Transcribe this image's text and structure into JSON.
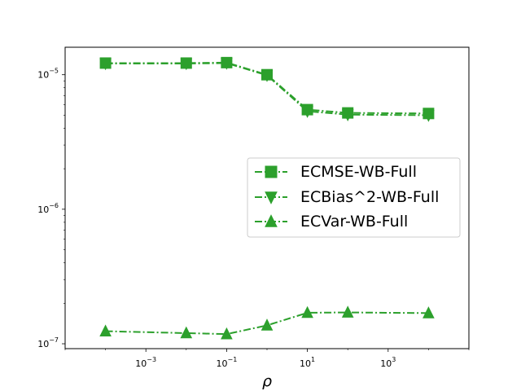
{
  "chart_data": {
    "type": "line",
    "title": "",
    "xlabel": "ρ",
    "ylabel": "",
    "xscale": "log",
    "yscale": "log",
    "xlim": [
      1e-05,
      100000
    ],
    "ylim": [
      9.2e-08,
      1.6e-05
    ],
    "grid": false,
    "legend_position": "center-right",
    "x": [
      0.0001,
      0.01,
      0.1,
      1,
      10,
      100,
      10000
    ],
    "x_ticks": [
      {
        "value": 0.001,
        "base": "10",
        "exp": "−3"
      },
      {
        "value": 0.1,
        "base": "10",
        "exp": "−1"
      },
      {
        "value": 10,
        "base": "10",
        "exp": "1"
      },
      {
        "value": 1000,
        "base": "10",
        "exp": "3"
      }
    ],
    "y_ticks": [
      {
        "value": 1e-07,
        "base": "10",
        "exp": "−7"
      },
      {
        "value": 1e-06,
        "base": "10",
        "exp": "−6"
      },
      {
        "value": 1e-05,
        "base": "10",
        "exp": "−5"
      }
    ],
    "series": [
      {
        "name": "ECMSE-WB-Full",
        "marker": "square",
        "color": "#2ca02c",
        "values": [
          1.22e-05,
          1.22e-05,
          1.23e-05,
          1e-05,
          5.5e-06,
          5.2e-06,
          5.15e-06
        ]
      },
      {
        "name": "ECBias^2-WB-Full",
        "marker": "triangle-down",
        "color": "#2ca02c",
        "values": [
          1.21e-05,
          1.21e-05,
          1.22e-05,
          9.9e-06,
          5.35e-06,
          5.05e-06,
          5e-06
        ]
      },
      {
        "name": "ECVar-WB-Full",
        "marker": "triangle-up",
        "color": "#2ca02c",
        "values": [
          1.24e-07,
          1.2e-07,
          1.18e-07,
          1.37e-07,
          1.7e-07,
          1.71e-07,
          1.69e-07
        ]
      }
    ]
  }
}
